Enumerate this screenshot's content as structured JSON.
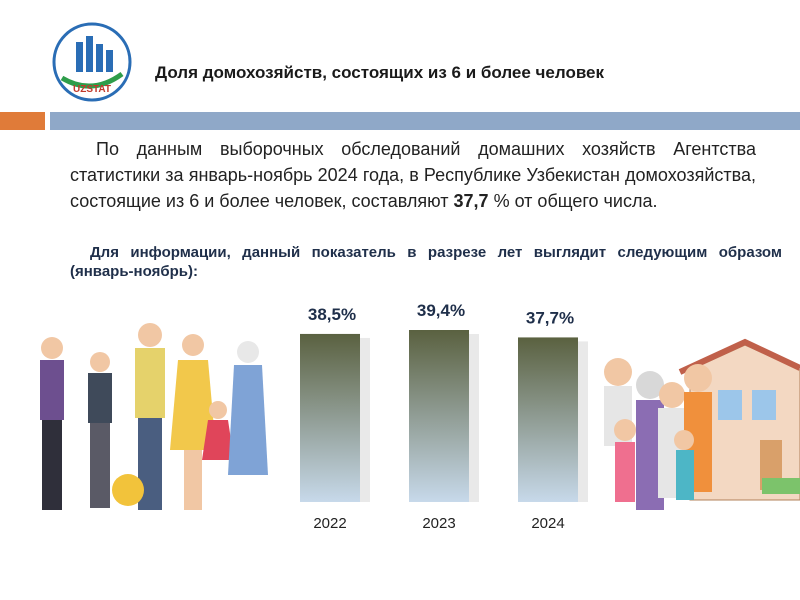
{
  "header": {
    "logo_text": "UZSTAT",
    "title": "Доля домохозяйств, состоящих из 6 и более человек"
  },
  "body": {
    "paragraph": [
      "По данным выборочных обследований домашних хозяйств Агентства статистики за январь-ноябрь 2024 года, в Республике Узбекистан домохозяйства, состоящие из 6 и более человек, составляют",
      "37,7",
      "% от общего числа."
    ],
    "note": "Для информации, данный показатель в разрезе лет выглядит следующим образом (январь-ноябрь):"
  },
  "chart_data": {
    "type": "bar",
    "categories": [
      "2022",
      "2023",
      "2024"
    ],
    "values": [
      38.5,
      39.4,
      37.7
    ],
    "value_labels": [
      "38,5%",
      "39,4%",
      "37,7%"
    ],
    "color": "#5a6140"
  }
}
